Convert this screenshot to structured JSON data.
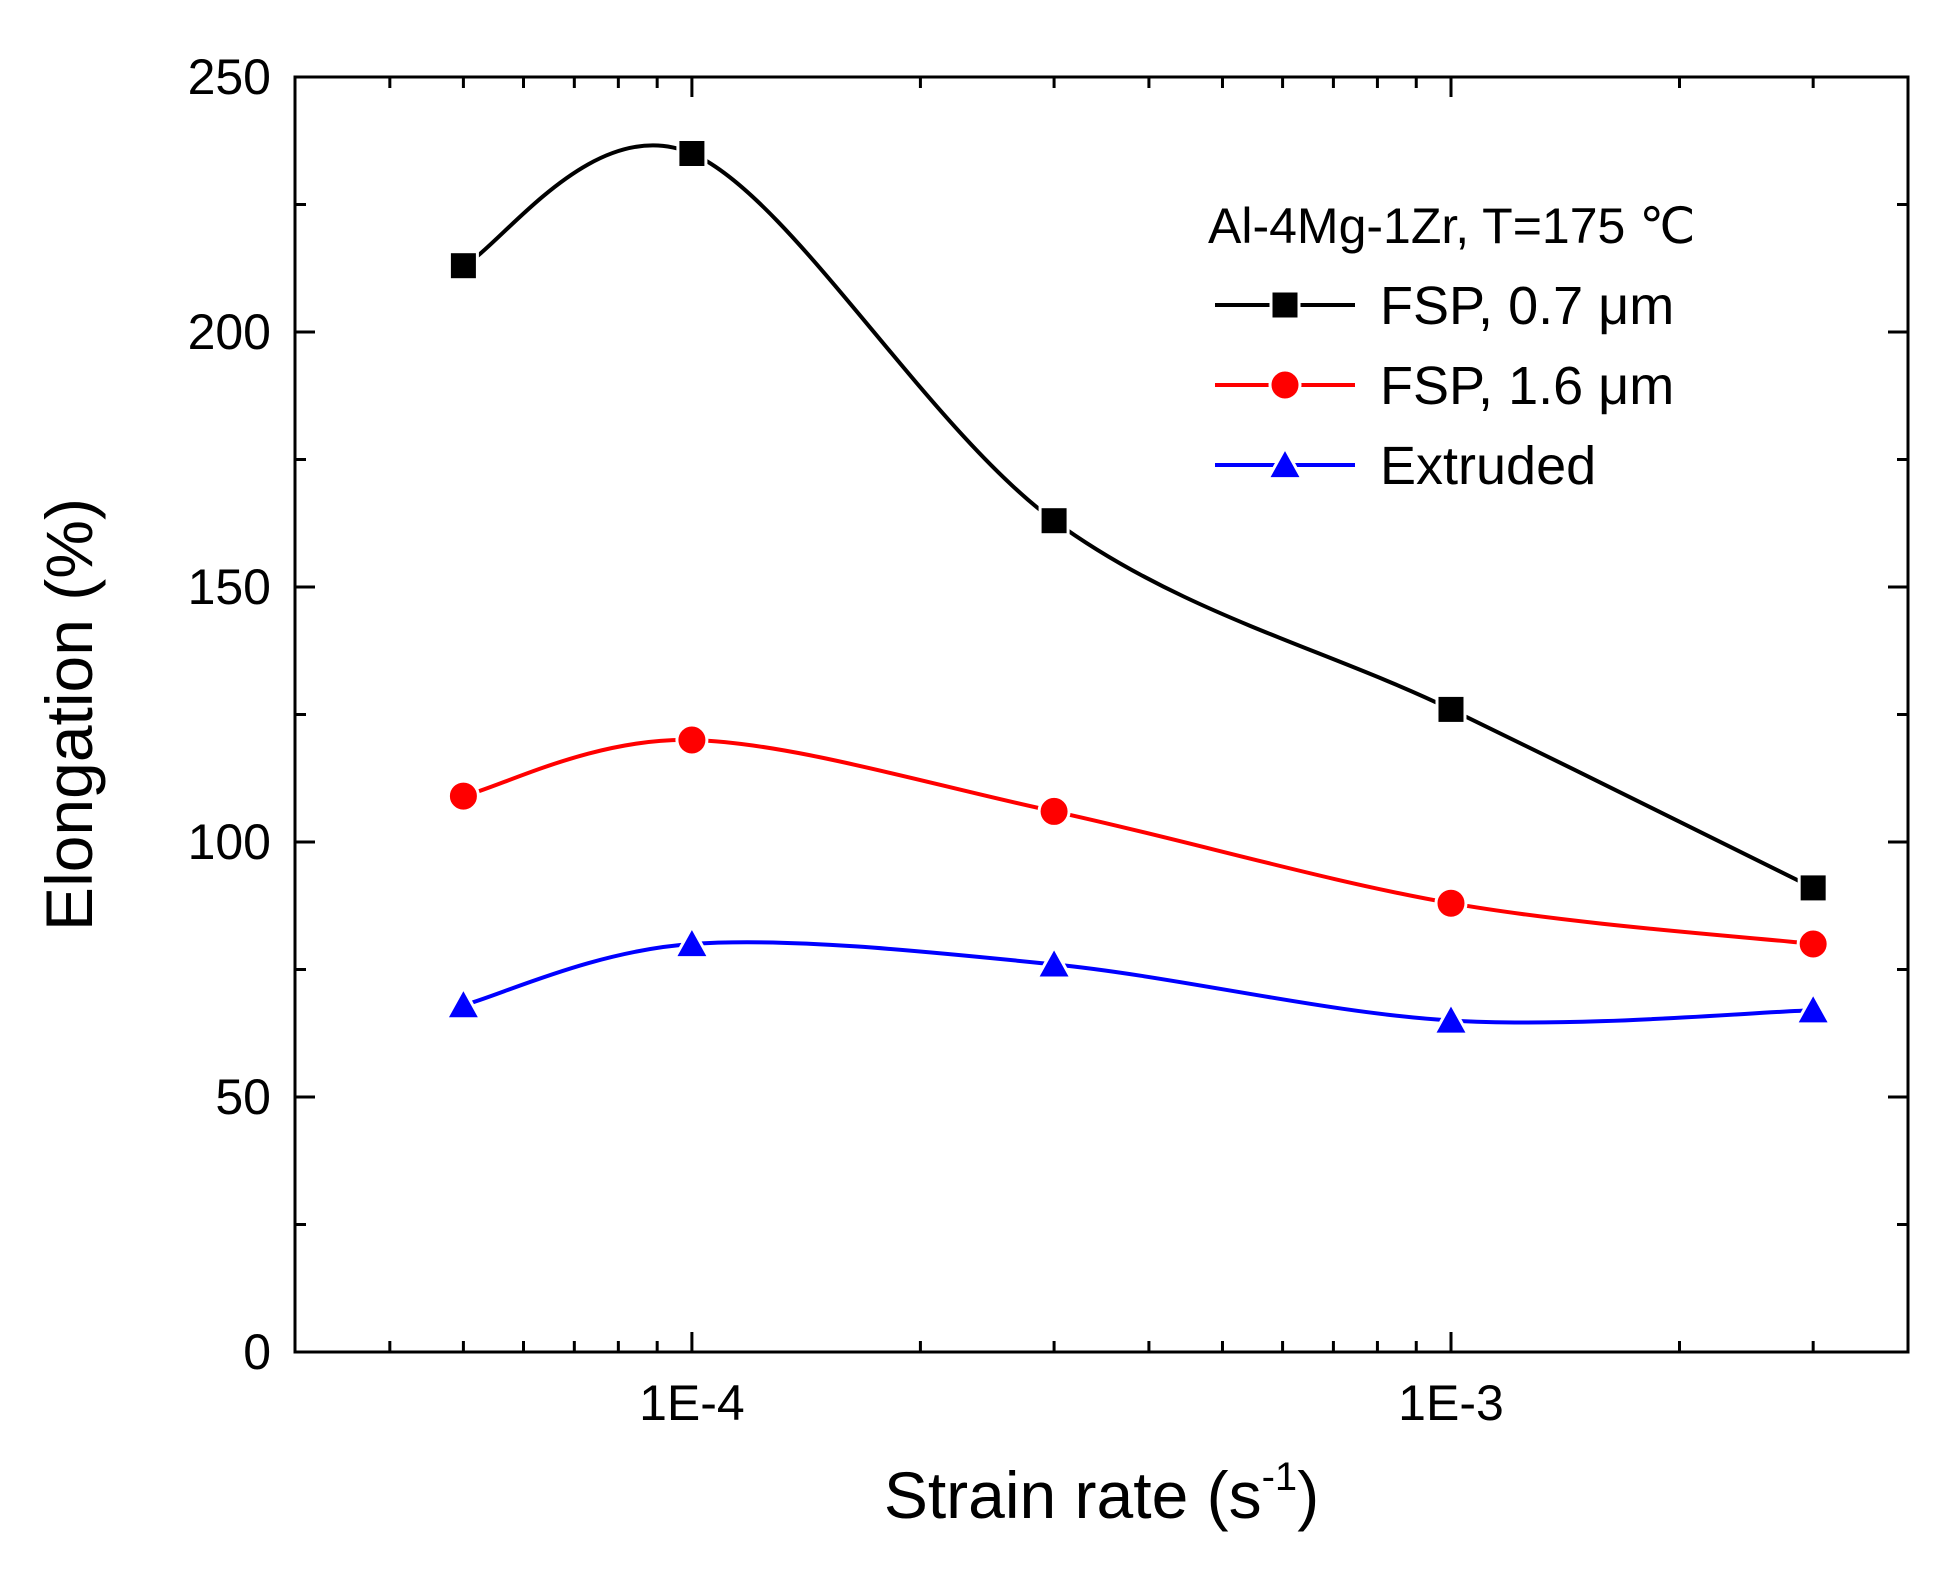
{
  "chart_data": {
    "type": "line",
    "title": "",
    "legend_title": "Al-4Mg-1Zr, T=175 ℃",
    "legend_position": "top-right",
    "xlabel": "Strain rate (s",
    "xlabel_superscript": "-1",
    "xlabel_suffix": ")",
    "ylabel": "Elongation (%)",
    "xscale": "log",
    "xlim": [
      3e-05,
      0.004
    ],
    "ylim": [
      0,
      250
    ],
    "grid": false,
    "x_tick_labels": [
      {
        "value": 0.0001,
        "label": "1E-4"
      },
      {
        "value": 0.001,
        "label": "1E-3"
      }
    ],
    "x_minor_ticks": [
      4e-05,
      5e-05,
      6e-05,
      7e-05,
      8e-05,
      9e-05,
      0.0002,
      0.0003,
      0.0004,
      0.0005,
      0.0006,
      0.0007,
      0.0008,
      0.0009,
      0.002,
      0.003,
      0.004
    ],
    "y_ticks": [
      0,
      50,
      100,
      150,
      200,
      250
    ],
    "y_minor_ticks": [
      25,
      75,
      125,
      175,
      225
    ],
    "x": [
      5e-05,
      0.0001,
      0.0003,
      0.001,
      0.003
    ],
    "series": [
      {
        "name": "FSP, 0.7 μm",
        "marker": "square",
        "color": "#000000",
        "values": [
          213,
          235,
          163,
          126,
          91
        ]
      },
      {
        "name": "FSP, 1.6 μm",
        "marker": "circle",
        "color": "#ff0000",
        "values": [
          109,
          120,
          106,
          88,
          80
        ]
      },
      {
        "name": "Extruded",
        "marker": "triangle",
        "color": "#0000ff",
        "values": [
          68,
          80,
          76,
          65,
          67
        ]
      }
    ]
  }
}
